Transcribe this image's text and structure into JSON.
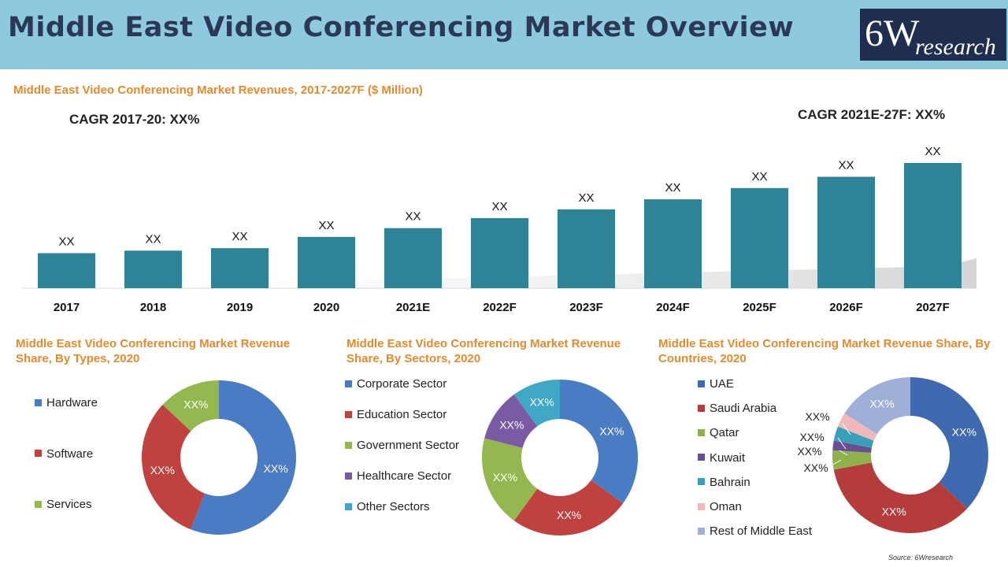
{
  "header": {
    "title": "Middle East Video Conferencing Market Overview"
  },
  "logo": {
    "number": "6W",
    "word": "research"
  },
  "source": "Source: 6Wresearch",
  "colors": {
    "bar": "#2e8396",
    "title_orange": "#e48a2e",
    "header_bg": "#8ecadf"
  },
  "chart_data": [
    {
      "type": "bar",
      "title": "Middle East Video Conferencing Market Revenues, 2017-2027F ($ Million)",
      "cagr_left": "CAGR 2017-20: XX%",
      "cagr_right": "CAGR 2021E-27F: XX%",
      "categories": [
        "2017",
        "2018",
        "2019",
        "2020",
        "2021E",
        "2022F",
        "2023F",
        "2024F",
        "2025F",
        "2026F",
        "2027F"
      ],
      "values": [
        28,
        30,
        32,
        41,
        48,
        56,
        63,
        71,
        80,
        89,
        100
      ],
      "value_labels": [
        "XX",
        "XX",
        "XX",
        "XX",
        "XX",
        "XX",
        "XX",
        "XX",
        "XX",
        "XX",
        "XX"
      ],
      "ylim": [
        0,
        100
      ],
      "color": "#2e8396"
    },
    {
      "type": "pie",
      "title": "Middle East Video Conferencing Market Revenue Share, By Types, 2020",
      "labels": [
        "Hardware",
        "Software",
        "Services"
      ],
      "values": [
        56,
        31,
        13
      ],
      "slice_labels": [
        "XX%",
        "XX%",
        "XX%"
      ],
      "colors": [
        "#4a7cc4",
        "#c0423f",
        "#94b84f"
      ]
    },
    {
      "type": "pie",
      "title": "Middle East Video Conferencing Market Revenue Share, By Sectors, 2020",
      "labels": [
        "Corporate Sector",
        "Education Sector",
        "Government Sector",
        "Healthcare Sector",
        "Other Sectors"
      ],
      "values": [
        35,
        25,
        19,
        11,
        10
      ],
      "slice_labels": [
        "XX%",
        "XX%",
        "XX%",
        "XX%",
        "XX%"
      ],
      "colors": [
        "#4a7cc4",
        "#c0423f",
        "#94b84f",
        "#7a5aa3",
        "#40a8c4"
      ]
    },
    {
      "type": "pie",
      "title": "Middle East Video Conferencing Market Revenue Share, By Countries, 2020",
      "labels": [
        "UAE",
        "Saudi Arabia",
        "Qatar",
        "Kuwait",
        "Bahrain",
        "Oman",
        "Rest of Middle East"
      ],
      "values": [
        37,
        35,
        4,
        2,
        3,
        3,
        16
      ],
      "slice_labels": [
        "XX%",
        "XX%",
        "XX%",
        "XX%",
        "XX%",
        "XX%",
        "XX%"
      ],
      "colors": [
        "#3f6ab0",
        "#b43c3a",
        "#8fb04a",
        "#6a4e94",
        "#3aa0ba",
        "#f0b8b8",
        "#9eb0d8"
      ]
    }
  ]
}
